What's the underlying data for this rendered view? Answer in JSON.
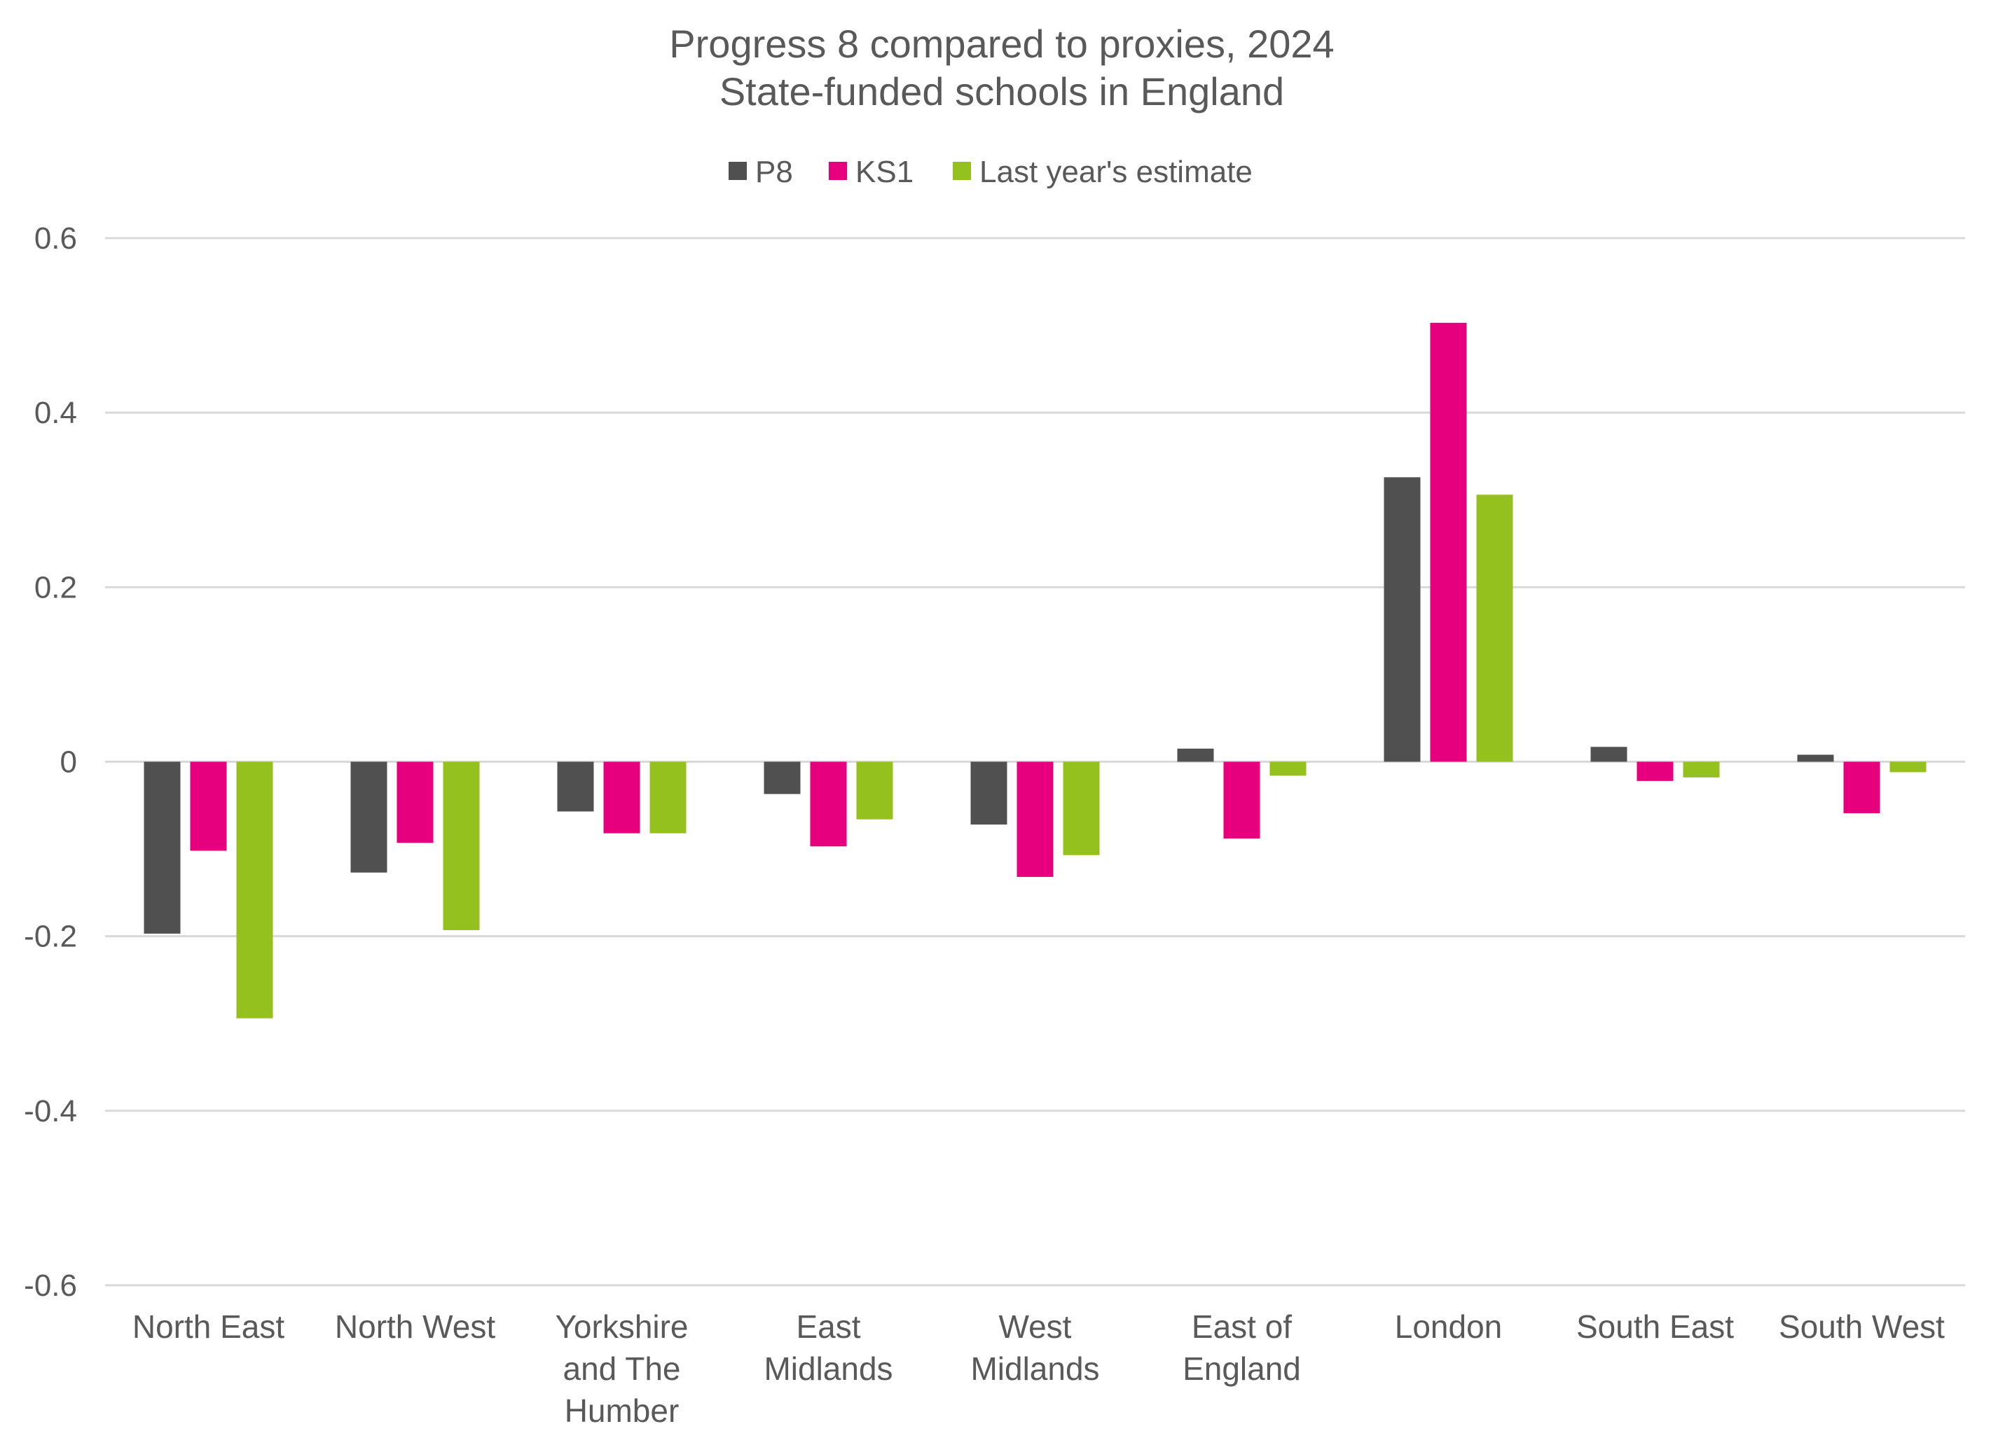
{
  "chart_data": {
    "type": "bar",
    "title": [
      "Progress 8 compared to proxies, 2024",
      "State-funded schools in England"
    ],
    "legend_position": "top-center",
    "grid": true,
    "ylim": [
      -0.6,
      0.6
    ],
    "yticks": [
      0.6,
      0.4,
      0.2,
      0,
      -0.2,
      -0.4,
      -0.6
    ],
    "ytick_labels": [
      "0.6",
      "0.4",
      "0.2",
      "0",
      "-0.2",
      "-0.4",
      "-0.6"
    ],
    "categories": [
      [
        "North East"
      ],
      [
        "North West"
      ],
      [
        "Yorkshire",
        "and The",
        "Humber"
      ],
      [
        "East",
        "Midlands"
      ],
      [
        "West",
        "Midlands"
      ],
      [
        "East of",
        "England"
      ],
      [
        "London"
      ],
      [
        "South East"
      ],
      [
        "South West"
      ]
    ],
    "series": [
      {
        "name": "P8",
        "color": "#505050",
        "values": [
          -0.197,
          -0.127,
          -0.057,
          -0.037,
          -0.072,
          0.015,
          0.326,
          0.017,
          0.008
        ]
      },
      {
        "name": "KS1",
        "color": "#e6007e",
        "values": [
          -0.102,
          -0.093,
          -0.082,
          -0.097,
          -0.132,
          -0.088,
          0.503,
          -0.022,
          -0.059
        ]
      },
      {
        "name": "Last year's estimate",
        "color": "#95c11f",
        "values": [
          -0.294,
          -0.193,
          -0.082,
          -0.066,
          -0.107,
          -0.016,
          0.306,
          -0.018,
          -0.012
        ]
      }
    ]
  }
}
